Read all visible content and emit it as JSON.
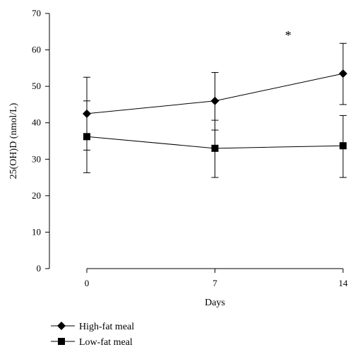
{
  "chart_data": {
    "type": "line",
    "title": "",
    "xlabel": "Days",
    "ylabel": "25(OH)D (nmol/L)",
    "x": [
      0,
      7,
      14
    ],
    "x_tick_labels": [
      "0",
      "7",
      "14"
    ],
    "xlim": [
      0,
      14
    ],
    "ylim": [
      0,
      70
    ],
    "y_ticks": [
      0,
      10,
      20,
      30,
      40,
      50,
      60,
      70
    ],
    "y_tick_labels": [
      "0",
      "10",
      "20",
      "30",
      "40",
      "50",
      "60",
      "70"
    ],
    "grid": false,
    "legend_position": "bottom-left",
    "series": [
      {
        "name": "High-fat meal",
        "marker": "diamond",
        "color": "#000000",
        "values": [
          42.5,
          46,
          53.5
        ],
        "error_low": [
          32.5,
          38,
          45
        ],
        "error_high": [
          52.5,
          53.8,
          61.8
        ]
      },
      {
        "name": "Low-fat meal",
        "marker": "square",
        "color": "#000000",
        "values": [
          36.2,
          33,
          33.7
        ],
        "error_low": [
          26.3,
          25,
          25
        ],
        "error_high": [
          46,
          40.7,
          42
        ]
      }
    ],
    "annotations": [
      {
        "text": "*",
        "x": 11,
        "y": 64
      }
    ]
  }
}
